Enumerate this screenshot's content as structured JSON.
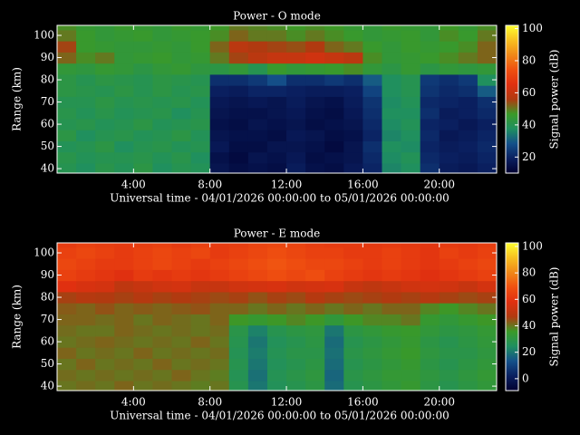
{
  "chart_data": [
    {
      "type": "heatmap",
      "title": "Power - O mode",
      "xlabel": "Universal time - 04/01/2026 00:00:00 to 05/01/2026 00:00:00",
      "ylabel": "Range (km)",
      "colorbar_label": "Signal power (dB)",
      "x": [
        0,
        1,
        2,
        3,
        4,
        5,
        6,
        7,
        8,
        9,
        10,
        11,
        12,
        13,
        14,
        15,
        16,
        17,
        18,
        19,
        20,
        21,
        22
      ],
      "y": [
        40,
        45,
        50,
        55,
        60,
        65,
        70,
        75,
        80,
        85,
        90,
        95,
        100,
        105
      ],
      "z": [
        [
          40,
          38,
          41,
          39,
          42,
          38,
          40,
          39,
          16,
          14,
          15,
          14,
          18,
          15,
          14,
          17,
          20,
          36,
          38,
          22,
          18,
          17,
          19
        ],
        [
          41,
          39,
          40,
          40,
          41,
          39,
          41,
          38,
          15,
          13,
          16,
          15,
          17,
          14,
          15,
          16,
          21,
          37,
          39,
          21,
          19,
          18,
          20
        ],
        [
          39,
          40,
          42,
          38,
          40,
          41,
          39,
          40,
          17,
          14,
          14,
          16,
          16,
          15,
          13,
          16,
          22,
          38,
          37,
          20,
          18,
          19,
          21
        ],
        [
          42,
          38,
          40,
          41,
          39,
          40,
          42,
          39,
          16,
          15,
          15,
          14,
          17,
          16,
          14,
          15,
          20,
          36,
          38,
          21,
          17,
          18,
          20
        ],
        [
          40,
          41,
          39,
          40,
          42,
          39,
          40,
          41,
          15,
          14,
          16,
          15,
          16,
          14,
          15,
          16,
          21,
          37,
          39,
          20,
          19,
          17,
          19
        ],
        [
          41,
          39,
          41,
          39,
          40,
          41,
          38,
          40,
          16,
          15,
          15,
          16,
          17,
          15,
          14,
          17,
          22,
          38,
          38,
          22,
          18,
          19,
          21
        ],
        [
          40,
          40,
          42,
          40,
          41,
          40,
          41,
          39,
          17,
          16,
          17,
          16,
          18,
          16,
          15,
          18,
          23,
          37,
          39,
          21,
          20,
          19,
          22
        ],
        [
          42,
          41,
          40,
          42,
          40,
          42,
          40,
          41,
          19,
          18,
          20,
          20,
          19,
          18,
          18,
          19,
          26,
          38,
          40,
          23,
          21,
          22,
          30
        ],
        [
          42,
          40,
          42,
          41,
          40,
          42,
          41,
          40,
          22,
          22,
          24,
          28,
          22,
          22,
          24,
          22,
          30,
          38,
          40,
          24,
          22,
          24,
          38
        ],
        [
          44,
          43,
          45,
          44,
          42,
          44,
          45,
          43,
          42,
          44,
          40,
          46,
          44,
          45,
          46,
          48,
          44,
          42,
          45,
          42,
          44,
          43,
          44
        ],
        [
          52,
          48,
          50,
          44,
          45,
          46,
          44,
          45,
          50,
          55,
          58,
          60,
          60,
          62,
          60,
          58,
          48,
          44,
          45,
          46,
          48,
          50,
          52
        ],
        [
          55,
          46,
          45,
          44,
          44,
          45,
          44,
          46,
          52,
          58,
          56,
          55,
          54,
          56,
          52,
          50,
          46,
          44,
          46,
          45,
          46,
          48,
          52
        ],
        [
          50,
          46,
          44,
          45,
          46,
          44,
          45,
          46,
          48,
          52,
          50,
          50,
          48,
          50,
          48,
          46,
          44,
          45,
          46,
          44,
          48,
          46,
          50
        ],
        [
          48,
          45,
          44,
          46,
          45,
          44,
          46,
          45,
          47,
          50,
          49,
          48,
          47,
          48,
          47,
          45,
          44,
          46,
          45,
          44,
          47,
          45,
          48
        ]
      ],
      "xlim": [
        0,
        23
      ],
      "ylim": [
        38,
        104.5
      ],
      "xticks": [
        {
          "value": 4,
          "label": "4:00"
        },
        {
          "value": 8,
          "label": "8:00"
        },
        {
          "value": 12,
          "label": "12:00"
        },
        {
          "value": 16,
          "label": "16:00"
        },
        {
          "value": 20,
          "label": "20:00"
        }
      ],
      "yticks": [
        40,
        50,
        60,
        70,
        80,
        90,
        100
      ],
      "zlim": [
        10,
        102
      ],
      "zticks": [
        20,
        40,
        60,
        80,
        100
      ],
      "colormap": [
        "#000030",
        "#0a2060",
        "#14508a",
        "#1f9060",
        "#3a9a28",
        "#b03a10",
        "#e03010",
        "#f05010",
        "#f08818",
        "#f8c020",
        "#ffff30"
      ]
    },
    {
      "type": "heatmap",
      "title": "Power - E mode",
      "xlabel": "Universal time - 04/01/2026 00:00:00 to 05/01/2026 00:00:00",
      "ylabel": "Range (km)",
      "colorbar_label": "Signal power (dB)",
      "x": [
        0,
        1,
        2,
        3,
        4,
        5,
        6,
        7,
        8,
        9,
        10,
        11,
        12,
        13,
        14,
        15,
        16,
        17,
        18,
        19,
        20,
        21,
        22
      ],
      "y": [
        40,
        45,
        50,
        55,
        60,
        65,
        70,
        75,
        80,
        85,
        90,
        95,
        100,
        105
      ],
      "z": [
        [
          40,
          41,
          40,
          42,
          40,
          41,
          40,
          39,
          40,
          28,
          20,
          26,
          28,
          30,
          18,
          28,
          30,
          32,
          34,
          30,
          28,
          30,
          32
        ],
        [
          41,
          40,
          41,
          40,
          41,
          40,
          42,
          40,
          39,
          27,
          19,
          27,
          29,
          31,
          17,
          29,
          31,
          33,
          33,
          31,
          29,
          31,
          33
        ],
        [
          40,
          42,
          40,
          41,
          40,
          42,
          40,
          41,
          40,
          28,
          20,
          26,
          28,
          30,
          18,
          28,
          30,
          32,
          34,
          30,
          28,
          30,
          32
        ],
        [
          42,
          40,
          41,
          40,
          42,
          40,
          41,
          40,
          41,
          27,
          21,
          27,
          29,
          29,
          19,
          29,
          31,
          33,
          35,
          31,
          29,
          29,
          31
        ],
        [
          40,
          41,
          42,
          41,
          40,
          41,
          40,
          42,
          40,
          28,
          20,
          26,
          28,
          30,
          18,
          28,
          30,
          32,
          34,
          30,
          28,
          30,
          32
        ],
        [
          41,
          40,
          40,
          42,
          41,
          40,
          41,
          40,
          41,
          29,
          22,
          28,
          30,
          31,
          20,
          30,
          32,
          34,
          35,
          32,
          30,
          31,
          33
        ],
        [
          42,
          42,
          41,
          42,
          40,
          42,
          41,
          40,
          42,
          36,
          34,
          36,
          38,
          36,
          32,
          36,
          38,
          38,
          40,
          34,
          32,
          34,
          36
        ],
        [
          43,
          42,
          44,
          42,
          43,
          42,
          43,
          44,
          42,
          42,
          40,
          42,
          40,
          42,
          40,
          42,
          40,
          42,
          42,
          38,
          36,
          38,
          40
        ],
        [
          46,
          48,
          47,
          46,
          48,
          46,
          47,
          46,
          45,
          46,
          44,
          46,
          45,
          48,
          46,
          45,
          46,
          47,
          46,
          48,
          46,
          45,
          46
        ],
        [
          58,
          56,
          55,
          50,
          52,
          54,
          55,
          52,
          52,
          54,
          55,
          56,
          54,
          55,
          56,
          52,
          50,
          52,
          54,
          55,
          54,
          52,
          55
        ],
        [
          64,
          62,
          60,
          58,
          62,
          60,
          62,
          60,
          62,
          64,
          66,
          68,
          66,
          68,
          64,
          62,
          60,
          62,
          60,
          58,
          60,
          62,
          64
        ],
        [
          66,
          64,
          62,
          62,
          64,
          66,
          64,
          62,
          64,
          66,
          68,
          70,
          68,
          66,
          66,
          64,
          62,
          64,
          62,
          60,
          62,
          64,
          66
        ],
        [
          64,
          66,
          64,
          62,
          64,
          66,
          64,
          66,
          62,
          64,
          66,
          68,
          66,
          64,
          64,
          62,
          62,
          64,
          62,
          60,
          64,
          62,
          64
        ],
        [
          62,
          64,
          63,
          62,
          63,
          64,
          62,
          64,
          62,
          63,
          65,
          66,
          65,
          63,
          62,
          62,
          61,
          62,
          61,
          60,
          62,
          61,
          63
        ]
      ],
      "xlim": [
        0,
        23
      ],
      "ylim": [
        38,
        104.5
      ],
      "xticks": [
        {
          "value": 4,
          "label": "4:00"
        },
        {
          "value": 8,
          "label": "8:00"
        },
        {
          "value": 12,
          "label": "12:00"
        },
        {
          "value": 16,
          "label": "16:00"
        },
        {
          "value": 20,
          "label": "20:00"
        }
      ],
      "yticks": [
        40,
        50,
        60,
        70,
        80,
        90,
        100
      ],
      "zlim": [
        -9,
        102.7
      ],
      "zticks": [
        0,
        20,
        40,
        60,
        80,
        100
      ],
      "colormap": [
        "#000030",
        "#0a2060",
        "#14508a",
        "#1f9060",
        "#3a9a28",
        "#b03a10",
        "#e03010",
        "#f05010",
        "#f08818",
        "#f8c020",
        "#ffff30"
      ]
    }
  ]
}
